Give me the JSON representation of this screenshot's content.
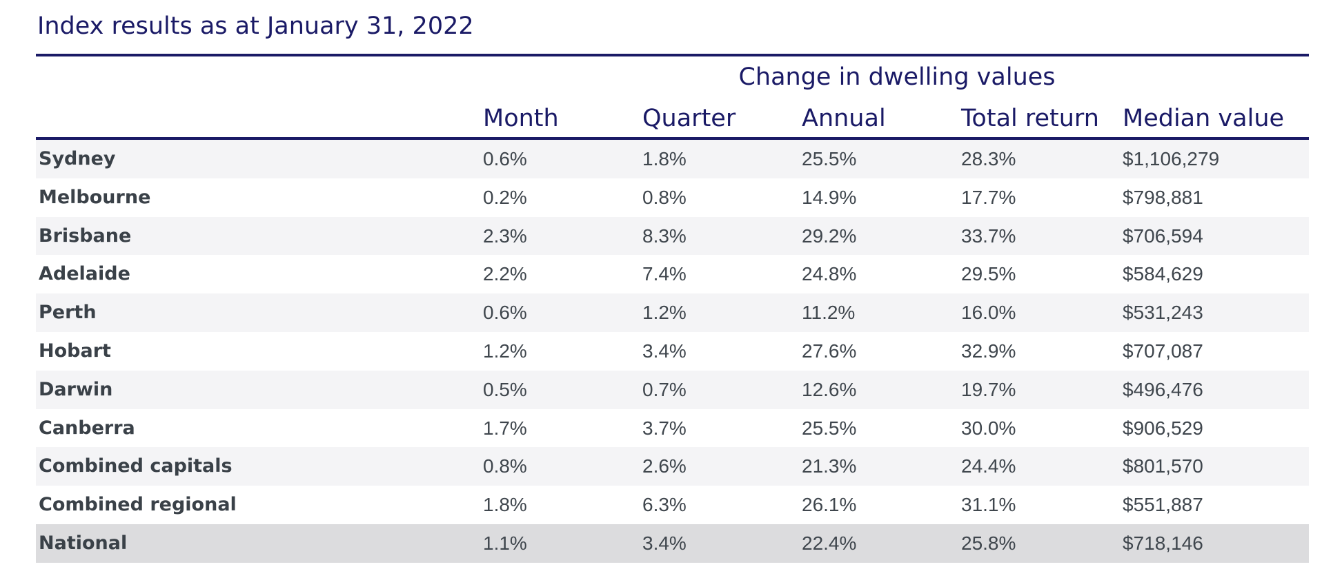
{
  "chart_data": {
    "type": "table",
    "title": "Index results as at January 31, 2022",
    "group_header": "Change in dwelling values",
    "columns": [
      "Month",
      "Quarter",
      "Annual",
      "Total return",
      "Median value"
    ],
    "rows": [
      {
        "name": "Sydney",
        "values": [
          "0.6%",
          "1.8%",
          "25.5%",
          "28.3%",
          "$1,106,279"
        ]
      },
      {
        "name": "Melbourne",
        "values": [
          "0.2%",
          "0.8%",
          "14.9%",
          "17.7%",
          "$798,881"
        ]
      },
      {
        "name": "Brisbane",
        "values": [
          "2.3%",
          "8.3%",
          "29.2%",
          "33.7%",
          "$706,594"
        ]
      },
      {
        "name": "Adelaide",
        "values": [
          "2.2%",
          "7.4%",
          "24.8%",
          "29.5%",
          "$584,629"
        ]
      },
      {
        "name": "Perth",
        "values": [
          "0.6%",
          "1.2%",
          "11.2%",
          "16.0%",
          "$531,243"
        ]
      },
      {
        "name": "Hobart",
        "values": [
          "1.2%",
          "3.4%",
          "27.6%",
          "32.9%",
          "$707,087"
        ]
      },
      {
        "name": "Darwin",
        "values": [
          "0.5%",
          "0.7%",
          "12.6%",
          "19.7%",
          "$496,476"
        ]
      },
      {
        "name": "Canberra",
        "values": [
          "1.7%",
          "3.7%",
          "25.5%",
          "30.0%",
          "$906,529"
        ]
      },
      {
        "name": "Combined capitals",
        "values": [
          "0.8%",
          "2.6%",
          "21.3%",
          "24.4%",
          "$801,570"
        ]
      },
      {
        "name": "Combined regional",
        "values": [
          "1.8%",
          "6.3%",
          "26.1%",
          "31.1%",
          "$551,887"
        ]
      },
      {
        "name": "National",
        "values": [
          "1.1%",
          "3.4%",
          "22.4%",
          "25.8%",
          "$718,146"
        ]
      }
    ]
  },
  "colors": {
    "heading": "#1a1a66",
    "text": "#3f464d",
    "row_shade": "#f4f4f6",
    "national_shade": "#dcdcde"
  }
}
